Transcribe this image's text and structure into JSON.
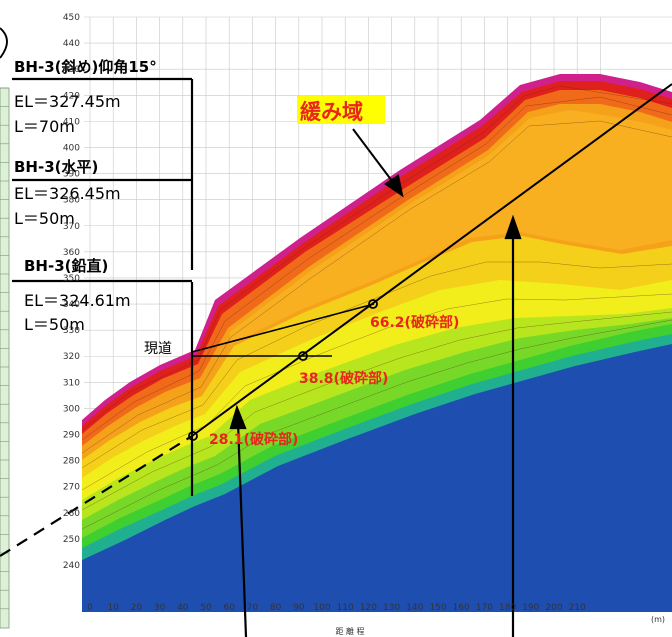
{
  "diagram": {
    "y_ticks": [
      "450",
      "440",
      "430",
      "420",
      "410",
      "400",
      "390",
      "380",
      "370",
      "360",
      "350",
      "340",
      "330",
      "320",
      "310",
      "300",
      "290",
      "280",
      "270",
      "260",
      "250",
      "240"
    ],
    "x_ticks": [
      "0",
      "10",
      "20",
      "30",
      "40",
      "50",
      "60",
      "70",
      "80",
      "90",
      "100",
      "110",
      "120",
      "130",
      "140",
      "150",
      "160",
      "170",
      "180",
      "190",
      "200",
      "210"
    ],
    "x_unit": "(m)",
    "x_axis_label": "距 離 程",
    "loose_zone_label": "緩み域",
    "loose_zone_bg": "#ffff00",
    "road_label": "現道",
    "boreholes": [
      {
        "title": "BH-3(斜め)仰角15°",
        "el": "EL＝327.45m",
        "len": "L＝70m"
      },
      {
        "title": "BH-3(水平)",
        "el": "EL＝326.45m",
        "len": "L＝50m"
      },
      {
        "title": "BH-3(鉛直)",
        "el": "EL＝324.61m",
        "len": "L＝50m"
      }
    ],
    "fracture_labels": [
      "66.2(破砕部)",
      "38.8(破砕部)",
      "28.1(破砕部)"
    ],
    "colors": {
      "bedrock": "#1e4fb0",
      "label_red": "#e8261c",
      "zone_green": "#3fcf30",
      "zone_yellow": "#f2ee1c",
      "zone_orange": "#f5a21a",
      "zone_red": "#e0201c",
      "zone_magenta": "#d0208c"
    }
  }
}
